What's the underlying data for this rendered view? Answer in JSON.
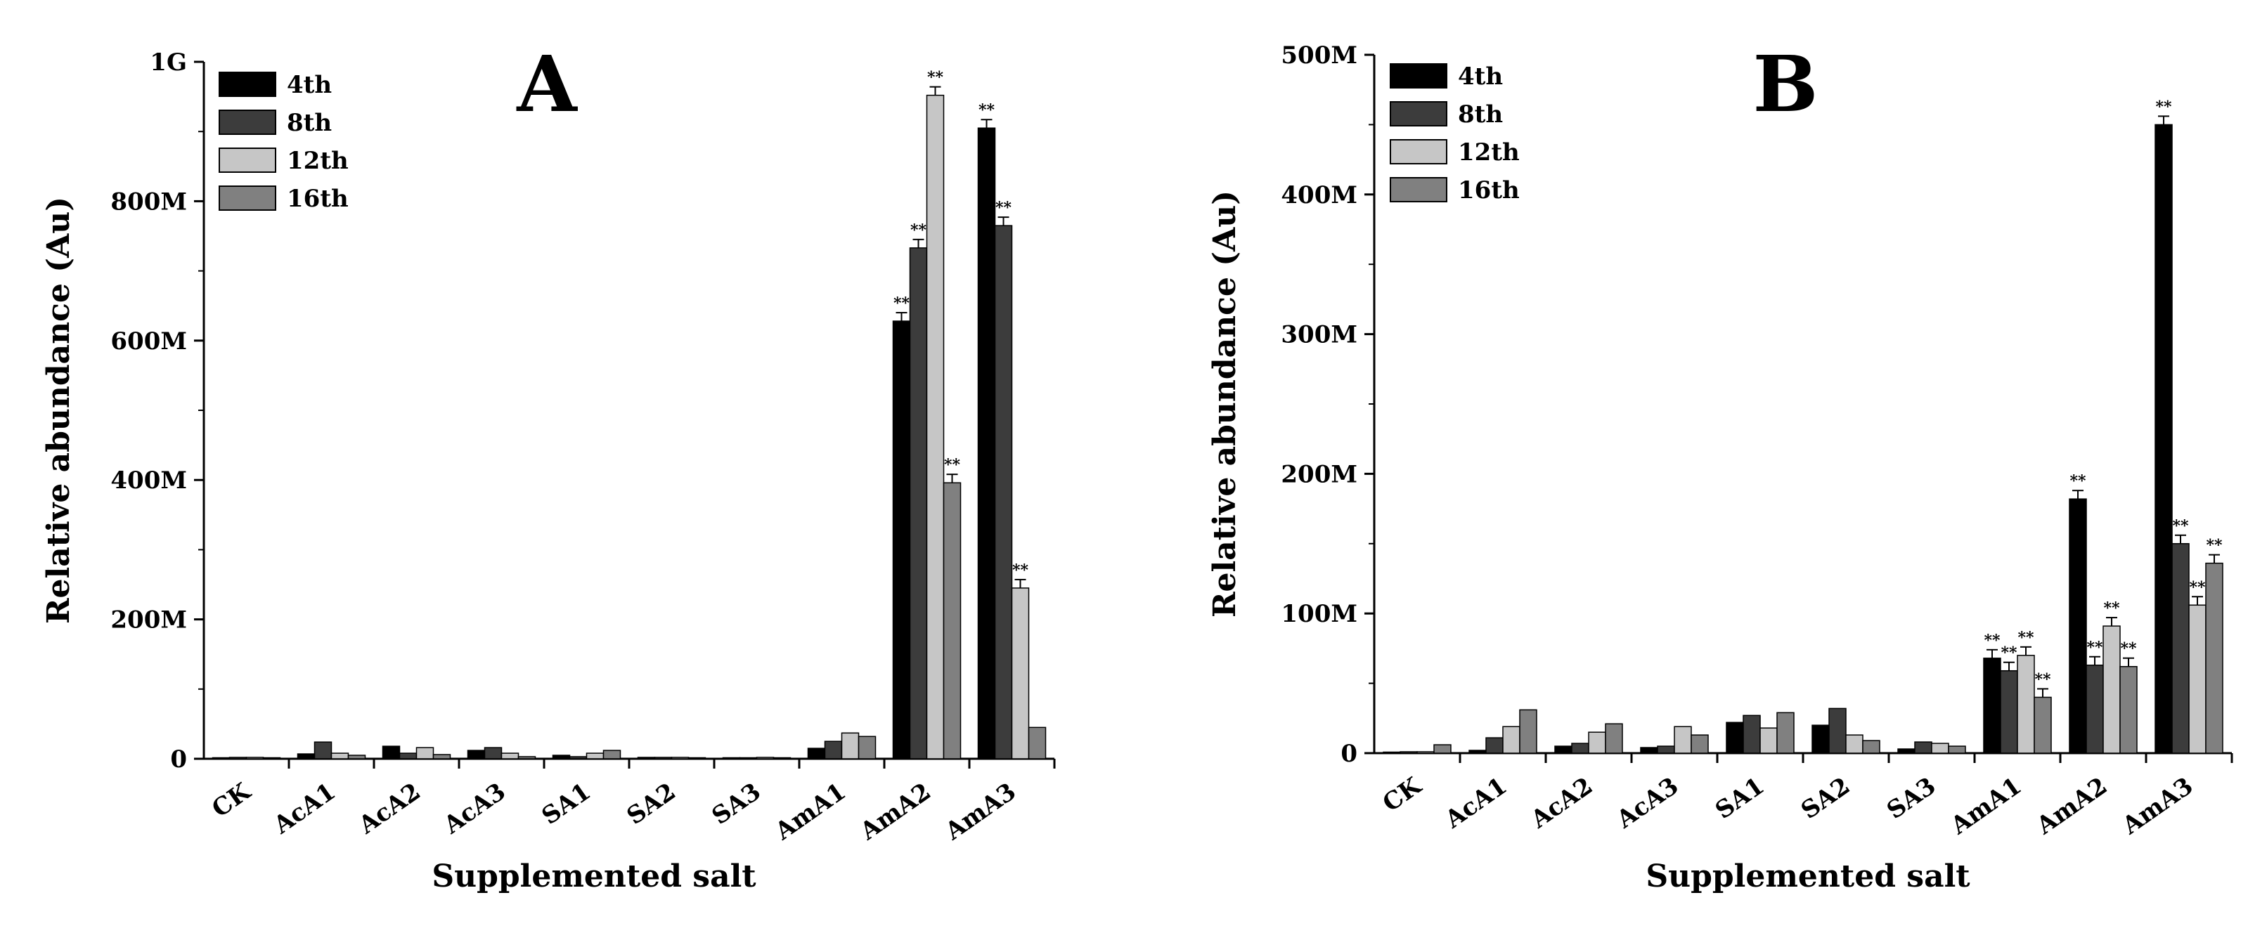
{
  "chart_data": [
    {
      "type": "bar",
      "title": "A",
      "xlabel": "Supplemented salt",
      "ylabel": "Relative abundance (Au)",
      "ylim": [
        0,
        1000
      ],
      "y_unit_label": "M",
      "yticks": [
        0,
        200,
        400,
        600,
        800,
        1000
      ],
      "ytick_labels": [
        "0",
        "200M",
        "400M",
        "600M",
        "800M",
        "1G"
      ],
      "categories": [
        "CK",
        "AcA1",
        "AcA2",
        "AcA3",
        "SA1",
        "SA2",
        "SA3",
        "AmA1",
        "AmA2",
        "AmA3"
      ],
      "legend_position": "top-left",
      "grid": false,
      "series": [
        {
          "name": "4th",
          "values": [
            1,
            7,
            18,
            12,
            5,
            2,
            1,
            15,
            628,
            905
          ],
          "significant": [
            false,
            false,
            false,
            false,
            false,
            false,
            false,
            false,
            true,
            true
          ]
        },
        {
          "name": "8th",
          "values": [
            2,
            24,
            8,
            16,
            3,
            2,
            1,
            25,
            733,
            765
          ],
          "significant": [
            false,
            false,
            false,
            false,
            false,
            false,
            false,
            false,
            true,
            true
          ]
        },
        {
          "name": "12th",
          "values": [
            2,
            8,
            16,
            8,
            8,
            2,
            2,
            37,
            952,
            245
          ],
          "significant": [
            false,
            false,
            false,
            false,
            false,
            false,
            false,
            false,
            true,
            true
          ]
        },
        {
          "name": "16th",
          "values": [
            1,
            5,
            6,
            3,
            12,
            1,
            1,
            32,
            396,
            45
          ],
          "significant": [
            false,
            false,
            false,
            false,
            false,
            false,
            false,
            false,
            true,
            false
          ]
        }
      ],
      "colors": [
        "#000000",
        "#3c3c3c",
        "#c6c6c6",
        "#808080"
      ],
      "significance_label": "**"
    },
    {
      "type": "bar",
      "title": "B",
      "xlabel": "Supplemented salt",
      "ylabel": "Relative abundance (Au)",
      "ylim": [
        0,
        500
      ],
      "y_unit_label": "M",
      "yticks": [
        0,
        100,
        200,
        300,
        400,
        500
      ],
      "ytick_labels": [
        "0",
        "100M",
        "200M",
        "300M",
        "400M",
        "500M"
      ],
      "categories": [
        "CK",
        "AcA1",
        "AcA2",
        "AcA3",
        "SA1",
        "SA2",
        "SA3",
        "AmA1",
        "AmA2",
        "AmA3"
      ],
      "legend_position": "top-left",
      "grid": false,
      "series": [
        {
          "name": "4th",
          "values": [
            0.5,
            2,
            5,
            4,
            22,
            20,
            3,
            68,
            182,
            450
          ],
          "significant": [
            false,
            false,
            false,
            false,
            false,
            false,
            false,
            true,
            true,
            true
          ]
        },
        {
          "name": "8th",
          "values": [
            1,
            11,
            7,
            5,
            27,
            32,
            8,
            59,
            63,
            150
          ],
          "significant": [
            false,
            false,
            false,
            false,
            false,
            false,
            false,
            true,
            true,
            true
          ]
        },
        {
          "name": "12th",
          "values": [
            1,
            19,
            15,
            19,
            18,
            13,
            7,
            70,
            91,
            106
          ],
          "significant": [
            false,
            false,
            false,
            false,
            false,
            false,
            false,
            true,
            true,
            true
          ]
        },
        {
          "name": "16th",
          "values": [
            6,
            31,
            21,
            13,
            29,
            9,
            5,
            40,
            62,
            136
          ],
          "significant": [
            false,
            false,
            false,
            false,
            false,
            false,
            false,
            true,
            true,
            true
          ]
        }
      ],
      "colors": [
        "#000000",
        "#3c3c3c",
        "#c6c6c6",
        "#808080"
      ],
      "significance_label": "**"
    }
  ]
}
